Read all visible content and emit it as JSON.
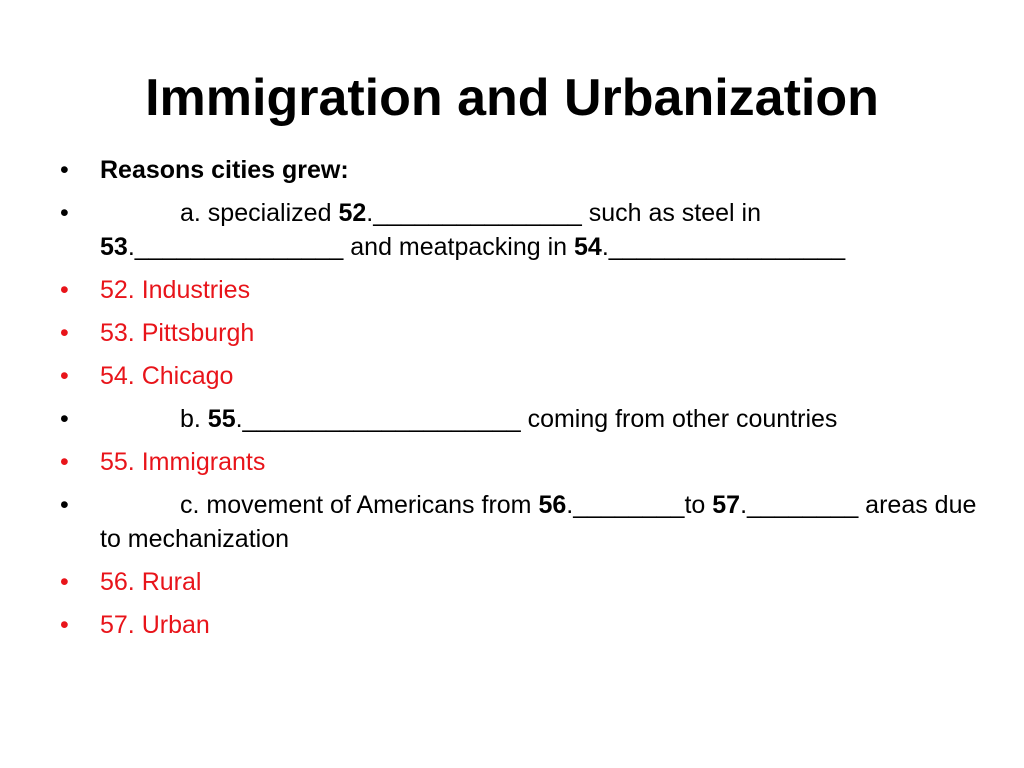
{
  "title": "Immigration and Urbanization",
  "bullets": {
    "heading": "Reasons cities grew:",
    "item_a": {
      "text1": "a. specialized ",
      "num52": "52",
      "text2": "._______________ such as steel in ",
      "num53": "53",
      "text3": "._______________ and meatpacking in ",
      "num54": "54",
      "text4": "._________________"
    },
    "answer52": "52. Industries",
    "answer53": "53. Pittsburgh",
    "answer54": "54. Chicago",
    "item_b": {
      "text1": "b. ",
      "num55": "55",
      "text2": ".____________________ coming from other countries"
    },
    "answer55": "55. Immigrants",
    "item_c": {
      "text1": "c. movement of Americans from ",
      "num56": "56",
      "text2": ".________to ",
      "num57": "57",
      "text3": ".________ areas due to mechanization"
    },
    "answer56": "56. Rural",
    "answer57": "57. Urban"
  },
  "colors": {
    "answer_red": "#e8141a",
    "text_black": "#000000",
    "background": "#ffffff"
  }
}
